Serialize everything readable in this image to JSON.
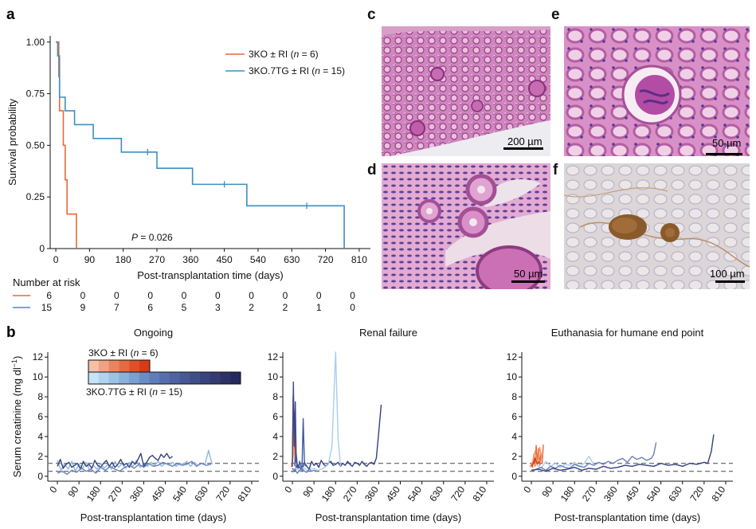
{
  "panel_labels": {
    "a": "a",
    "b": "b",
    "c": "c",
    "d": "d",
    "e": "e",
    "f": "f"
  },
  "colors": {
    "ko": "#e8693a",
    "tg": "#3f8fc0",
    "dashed": "#777777",
    "axis": "#111111"
  },
  "chart_data": [
    {
      "id": "survival",
      "type": "line",
      "step": true,
      "xlabel": "Post-transplantation time (days)",
      "ylabel": "Survival probability",
      "xticks": [
        0,
        90,
        180,
        270,
        360,
        450,
        540,
        630,
        720,
        810
      ],
      "yticks": [
        "0",
        "0.25",
        "0.50",
        "0.75",
        "1.00"
      ],
      "ytick_values": [
        0,
        0.25,
        0.5,
        0.75,
        1.0
      ],
      "xlim": [
        -15,
        840
      ],
      "ylim": [
        0,
        1.03
      ],
      "pvalue_prefix": "P",
      "pvalue_rest": " = 0.026",
      "legend_position": "top-right",
      "series": [
        {
          "name_prefix": "3KO ± RI (",
          "name_italic": "n",
          "name_suffix": " = 6)",
          "color": "#e8693a",
          "x": [
            0,
            8,
            10,
            20,
            25,
            30,
            40,
            55
          ],
          "y": [
            1.0,
            0.833,
            0.667,
            0.5,
            0.333,
            0.167,
            0.167,
            0.0
          ],
          "censor_x": [],
          "censor_y": []
        },
        {
          "name_prefix": "3KO.7TG ± RI (",
          "name_italic": "n",
          "name_suffix": " = 15)",
          "color": "#3f8fc0",
          "x": [
            0,
            5,
            10,
            25,
            50,
            100,
            175,
            270,
            365,
            510,
            770
          ],
          "y": [
            1.0,
            0.933,
            0.733,
            0.667,
            0.6,
            0.533,
            0.467,
            0.389,
            0.311,
            0.207,
            0.0
          ],
          "censor_x": [
            245,
            450,
            670
          ],
          "censor_y": [
            0.467,
            0.311,
            0.207
          ]
        }
      ],
      "risk_table": {
        "title": "Number at risk",
        "rows": [
          {
            "color": "#e8693a",
            "values": [
              "6",
              "0",
              "0",
              "0",
              "0",
              "0",
              "0",
              "0",
              "0",
              "0"
            ]
          },
          {
            "color": "#3f8fc0",
            "values": [
              "15",
              "9",
              "7",
              "6",
              "5",
              "3",
              "2",
              "2",
              "1",
              "0"
            ]
          }
        ]
      }
    },
    {
      "id": "creatinine-ongoing",
      "type": "line",
      "title": "Ongoing",
      "xlabel": "Post-transplantation time (days)",
      "ylabel": "Serum creatinine (mg dl",
      "ylabel_sup": "−1",
      "ylabel_end": ")",
      "xticks": [
        0,
        90,
        180,
        270,
        360,
        450,
        540,
        630,
        720,
        810
      ],
      "yticks": [
        0,
        2,
        4,
        6,
        8,
        10,
        12
      ],
      "ylim": [
        -0.5,
        12.5
      ],
      "reference_lines": [
        0.5,
        1.3
      ],
      "series": [
        {
          "color": "#8fb8dc",
          "x": [
            0,
            15,
            30,
            45,
            60,
            75,
            90,
            105,
            120,
            135,
            150,
            165,
            180,
            195,
            210,
            225,
            240,
            255,
            270,
            285,
            300,
            315,
            330,
            345,
            360,
            375,
            390,
            405,
            420,
            435,
            450,
            465,
            480,
            495,
            510,
            525,
            540,
            555,
            570,
            585,
            600,
            615,
            630,
            645
          ],
          "y": [
            1.6,
            0.6,
            1.3,
            0.7,
            1.5,
            0.5,
            1.2,
            0.8,
            1.4,
            0.6,
            1.1,
            0.7,
            1.3,
            0.8,
            1.2,
            0.7,
            1.5,
            0.9,
            1.3,
            0.8,
            1.4,
            1.0,
            1.6,
            0.9,
            1.2,
            1.0,
            1.4,
            1.1,
            1.5,
            1.0,
            1.3,
            1.2,
            1.4,
            1.0,
            1.3,
            1.2,
            1.5,
            1.0,
            1.4,
            1.1,
            1.3,
            1.2,
            2.6,
            1.2
          ]
        },
        {
          "color": "#34417e",
          "x": [
            0,
            12,
            24,
            36,
            48,
            60,
            72,
            84,
            96,
            108,
            120,
            132,
            144,
            156,
            168,
            180,
            192,
            204,
            216,
            228,
            240,
            252,
            264,
            276,
            288,
            300,
            312,
            324,
            336,
            348,
            360,
            372,
            384,
            396,
            408,
            420,
            432,
            444,
            456,
            468,
            480
          ],
          "y": [
            1.0,
            1.7,
            0.8,
            1.2,
            1.4,
            0.9,
            1.1,
            1.3,
            0.7,
            1.5,
            1.0,
            1.2,
            0.8,
            1.6,
            1.1,
            0.9,
            1.3,
            1.6,
            1.0,
            1.4,
            0.9,
            1.2,
            1.7,
            1.1,
            1.3,
            0.9,
            1.5,
            1.2,
            1.7,
            2.3,
            1.0,
            1.4,
            1.9,
            2.1,
            1.8,
            1.6,
            2.2,
            1.9,
            2.3,
            1.8,
            2.0
          ]
        },
        {
          "color": "#6a7fbd",
          "x": [
            0,
            20,
            40,
            60,
            80,
            100,
            120,
            140,
            160,
            180,
            200,
            220,
            240,
            260,
            280,
            300,
            320,
            340,
            360,
            380,
            400,
            420,
            440,
            460,
            480,
            500,
            520,
            540,
            560,
            580,
            600,
            620,
            640
          ],
          "y": [
            0.3,
            0.5,
            0.2,
            0.6,
            0.4,
            0.8,
            0.5,
            0.7,
            0.3,
            0.9,
            0.6,
            1.0,
            0.7,
            0.5,
            0.9,
            1.1,
            0.8,
            1.2,
            0.9,
            1.3,
            1.0,
            1.1,
            1.4,
            1.2,
            1.0,
            1.3,
            1.1,
            1.2,
            1.5,
            1.0,
            1.3,
            1.1,
            1.2
          ]
        }
      ],
      "legend": {
        "items": [
          {
            "prefix": "3KO ± RI (",
            "italic": "n",
            "suffix": " = 6)",
            "colors": [
              "#f4c1a8",
              "#efa382",
              "#ea8460",
              "#e46a44",
              "#de4f2a",
              "#d63a17"
            ]
          },
          {
            "prefix": "3KO.7TG ± RI (",
            "italic": "n",
            "suffix": " = 15)",
            "colors": [
              "#c6e3f7",
              "#b0d3ee",
              "#9cc3e5",
              "#8ab1db",
              "#7a9fd0",
              "#6b8dc5",
              "#5f7db9",
              "#566fac",
              "#4e63a0",
              "#475894",
              "#404e88",
              "#39447c",
              "#333b70",
              "#2c3266",
              "#25295b"
            ]
          }
        ]
      }
    },
    {
      "id": "creatinine-renal-failure",
      "type": "line",
      "title": "Renal failure",
      "xlabel": "Post-transplantation time (days)",
      "xticks": [
        0,
        90,
        180,
        270,
        360,
        450,
        540,
        630,
        720,
        810
      ],
      "yticks": [
        0,
        2,
        4,
        6,
        8,
        10,
        12
      ],
      "ylim": [
        -0.5,
        12.5
      ],
      "reference_lines": [
        0.5,
        1.3
      ],
      "series": [
        {
          "color": "#d63a17",
          "x": [
            -5,
            0,
            3,
            6,
            9,
            12
          ],
          "y": [
            1.2,
            1.0,
            8.0,
            2.5,
            6.5,
            1.5
          ]
        },
        {
          "color": "#e8693a",
          "x": [
            -5,
            0,
            4,
            8,
            12
          ],
          "y": [
            0.9,
            1.3,
            5.0,
            1.8,
            1.0
          ]
        },
        {
          "color": "#f4a582",
          "x": [
            -5,
            0,
            5,
            10
          ],
          "y": [
            1.0,
            1.5,
            3.0,
            1.2
          ]
        },
        {
          "color": "#3b4a8a",
          "x": [
            0,
            4,
            8,
            12,
            16,
            20,
            24
          ],
          "y": [
            1.0,
            9.5,
            3.0,
            7.5,
            1.5,
            1.0,
            0.8
          ]
        },
        {
          "color": "#34417e",
          "x": [
            0,
            10,
            20,
            30,
            40,
            50,
            60,
            70,
            80,
            90,
            100,
            110,
            120,
            130,
            140,
            150,
            160,
            170,
            180,
            190,
            200,
            210,
            220,
            230,
            240,
            250,
            260,
            270,
            280,
            290,
            300,
            310,
            320,
            330,
            340,
            350,
            360,
            370
          ],
          "y": [
            0.8,
            0.5,
            1.2,
            0.9,
            0.6,
            1.4,
            1.0,
            0.7,
            1.5,
            1.1,
            1.3,
            0.9,
            1.6,
            1.2,
            1.0,
            1.3,
            1.5,
            1.1,
            1.2,
            1.4,
            1.0,
            1.3,
            1.1,
            1.5,
            1.2,
            1.0,
            1.4,
            1.3,
            1.1,
            1.5,
            1.2,
            1.0,
            1.3,
            1.4,
            1.2,
            1.8,
            4.5,
            7.2
          ]
        },
        {
          "color": "#3b5aa0",
          "x": [
            10,
            15,
            20,
            25,
            30,
            35,
            40,
            45,
            50,
            55
          ],
          "y": [
            1.0,
            2.5,
            1.2,
            0.8,
            1.5,
            1.0,
            0.8,
            5.8,
            1.5,
            1.0
          ]
        },
        {
          "color": "#a9cdeb",
          "x": [
            0,
            15,
            30,
            45,
            60,
            75,
            90,
            105,
            120,
            135,
            150,
            165,
            180,
            190,
            200
          ],
          "y": [
            0.6,
            0.8,
            0.5,
            0.9,
            0.6,
            0.7,
            0.8,
            0.6,
            0.7,
            0.9,
            1.2,
            3.0,
            12.5,
            4.0,
            1.0
          ]
        },
        {
          "color": "#6a7fbd",
          "x": [
            0,
            10,
            20,
            30,
            40,
            50,
            60,
            70,
            80,
            90,
            100
          ],
          "y": [
            0.4,
            0.7,
            0.3,
            0.6,
            0.8,
            0.5,
            0.4,
            0.7,
            0.5,
            0.6,
            0.5
          ]
        }
      ]
    },
    {
      "id": "creatinine-euthanasia",
      "type": "line",
      "title": "Euthanasia for humane end point",
      "xlabel": "Post-transplantation time (days)",
      "xticks": [
        0,
        90,
        180,
        270,
        360,
        450,
        540,
        630,
        720,
        810
      ],
      "yticks": [
        0,
        2,
        4,
        6,
        8,
        10,
        12
      ],
      "ylim": [
        -0.5,
        12.5
      ],
      "reference_lines": [
        0.5,
        1.3
      ],
      "series": [
        {
          "color": "#e8693a",
          "x": [
            -5,
            0,
            5,
            10,
            15,
            20,
            25,
            30,
            35,
            40,
            45,
            50
          ],
          "y": [
            1.0,
            1.2,
            0.9,
            2.2,
            1.0,
            3.1,
            1.4,
            2.8,
            1.1,
            2.4,
            1.3,
            3.2
          ]
        },
        {
          "color": "#f29b6e",
          "x": [
            -5,
            5,
            15,
            25,
            35,
            45
          ],
          "y": [
            0.9,
            1.5,
            2.5,
            1.2,
            2.9,
            1.6
          ]
        },
        {
          "color": "#d63a17",
          "x": [
            0,
            8,
            16,
            24,
            32
          ],
          "y": [
            1.0,
            1.3,
            1.8,
            1.2,
            1.5
          ]
        },
        {
          "color": "#a9cdeb",
          "x": [
            20,
            40,
            60,
            80,
            100,
            120,
            140,
            160,
            180,
            200,
            220,
            240,
            260
          ],
          "y": [
            1.2,
            0.8,
            1.5,
            1.0,
            1.3,
            0.9,
            1.2,
            1.1,
            1.4,
            1.0,
            1.3,
            2.0,
            1.2
          ]
        },
        {
          "color": "#6a7fbd",
          "x": [
            0,
            20,
            40,
            60,
            80,
            100,
            120,
            140,
            160,
            180,
            200,
            220,
            240,
            260,
            280,
            300,
            320,
            340,
            360,
            380,
            400,
            420,
            440,
            460,
            480,
            500,
            510,
            520
          ],
          "y": [
            0.5,
            0.7,
            0.9,
            0.6,
            1.0,
            0.8,
            1.1,
            0.9,
            0.8,
            1.2,
            1.0,
            0.9,
            1.3,
            1.1,
            1.4,
            1.2,
            1.5,
            1.3,
            1.6,
            1.8,
            1.4,
            2.0,
            1.7,
            1.9,
            1.6,
            1.8,
            2.2,
            3.4
          ]
        },
        {
          "color": "#34417e",
          "x": [
            0,
            30,
            60,
            90,
            120,
            150,
            180,
            210,
            240,
            270,
            300,
            330,
            360,
            390,
            420,
            450,
            480,
            510,
            540,
            570,
            600,
            630,
            660,
            690,
            720,
            735,
            750,
            760
          ],
          "y": [
            0.6,
            0.7,
            0.5,
            0.8,
            0.6,
            0.7,
            0.9,
            0.6,
            0.8,
            0.7,
            1.0,
            0.8,
            0.9,
            1.1,
            1.0,
            1.2,
            1.1,
            1.0,
            1.3,
            1.1,
            1.2,
            1.0,
            1.3,
            1.2,
            1.4,
            1.3,
            2.5,
            4.2
          ]
        }
      ]
    }
  ],
  "micrographs": [
    {
      "id": "c",
      "label": "c",
      "scale": "200 µm",
      "stain": "H&E"
    },
    {
      "id": "d",
      "label": "d",
      "scale": "50 µm",
      "stain": "H&E"
    },
    {
      "id": "e",
      "label": "e",
      "scale": "50 µm",
      "stain": "H&E"
    },
    {
      "id": "f",
      "label": "f",
      "scale": "100 µm",
      "stain": "IHC"
    }
  ]
}
